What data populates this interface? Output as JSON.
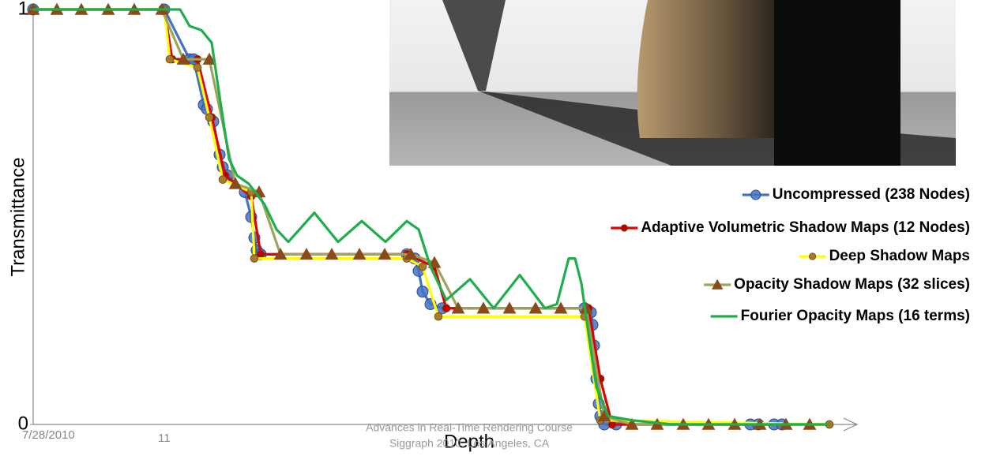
{
  "chart_data": {
    "type": "line",
    "y_label": "Transmittance",
    "x_label": "Depth",
    "xlim": [
      0,
      1043
    ],
    "ylim": [
      0,
      1
    ],
    "yticks": [
      0,
      1
    ],
    "legend": "right",
    "series": [
      {
        "name": "Uncompressed (238 Nodes)",
        "color": "#4472c4",
        "marker": "circle",
        "marker_color": "#4472c4",
        "x": [
          0,
          166,
          198,
          203,
          216,
          220,
          228,
          236,
          240,
          246,
          268,
          276,
          280,
          283,
          288,
          473,
          483,
          488,
          493,
          503,
          518,
          698,
          706,
          708,
          710,
          713,
          716,
          718,
          723,
          738,
          908,
          918,
          938,
          948
        ],
        "values": [
          1,
          1,
          0.88,
          0.88,
          0.77,
          0.76,
          0.73,
          0.65,
          0.62,
          0.6,
          0.56,
          0.5,
          0.45,
          0.42,
          0.41,
          0.41,
          0.4,
          0.37,
          0.32,
          0.29,
          0.28,
          0.28,
          0.27,
          0.24,
          0.19,
          0.11,
          0.05,
          0.02,
          0,
          0,
          0,
          0,
          0,
          0
        ]
      },
      {
        "name": "Adaptive Volumetric Shadow Maps (12 Nodes)",
        "color": "#e00000",
        "marker": "dot",
        "marker_color": "#c00000",
        "x": [
          0,
          166,
          176,
          208,
          226,
          243,
          276,
          288,
          473,
          508,
          523,
          703,
          718,
          733,
          1008
        ],
        "values": [
          1,
          1,
          0.88,
          0.88,
          0.74,
          0.6,
          0.55,
          0.41,
          0.41,
          0.38,
          0.28,
          0.28,
          0.11,
          0,
          0
        ]
      },
      {
        "name": "Deep Shadow Maps",
        "color": "#ffff00",
        "marker": "dot",
        "marker_color": "#a57a2a",
        "x": [
          0,
          166,
          173,
          208,
          223,
          240,
          276,
          280,
          473,
          493,
          513,
          698,
          718,
          1008
        ],
        "values": [
          1,
          1,
          0.88,
          0.86,
          0.74,
          0.59,
          0.56,
          0.4,
          0.4,
          0.38,
          0.26,
          0.26,
          0.01,
          0
        ]
      },
      {
        "name": "Opacity Shadow Maps (32 slices)",
        "color": "#9ba65c",
        "marker": "triangle",
        "marker_color": "#8a4a1c",
        "x": [
          0,
          30,
          61,
          95,
          128,
          163,
          190,
          223,
          256,
          286,
          313,
          346,
          378,
          413,
          445,
          478,
          508,
          538,
          570,
          603,
          636,
          668,
          700,
          723,
          758,
          790,
          823,
          855,
          888,
          920,
          953,
          983
        ],
        "values": [
          1,
          1,
          1,
          1,
          1,
          1,
          0.88,
          0.88,
          0.58,
          0.56,
          0.41,
          0.41,
          0.41,
          0.41,
          0.41,
          0.41,
          0.39,
          0.28,
          0.28,
          0.28,
          0.28,
          0.28,
          0.28,
          0.02,
          0,
          0,
          0,
          0,
          0,
          0,
          0,
          0
        ]
      },
      {
        "name": "Fourier Opacity Maps (16 terms)",
        "color": "#1fae4b",
        "marker": null,
        "marker_color": null,
        "x": [
          0,
          163,
          186,
          198,
          213,
          226,
          236,
          248,
          258,
          273,
          293,
          308,
          323,
          356,
          386,
          416,
          446,
          473,
          488,
          503,
          523,
          553,
          583,
          616,
          648,
          663,
          678,
          686,
          694,
          703,
          713,
          728,
          758,
          808,
          1008
        ],
        "values": [
          1,
          1,
          1,
          0.96,
          0.95,
          0.92,
          0.79,
          0.64,
          0.6,
          0.58,
          0.53,
          0.47,
          0.44,
          0.51,
          0.44,
          0.49,
          0.44,
          0.49,
          0.47,
          0.38,
          0.3,
          0.35,
          0.28,
          0.36,
          0.28,
          0.29,
          0.4,
          0.4,
          0.34,
          0.22,
          0.09,
          0.02,
          0.01,
          0,
          0
        ]
      }
    ],
    "footer": {
      "date": "7/28/2010",
      "page": "11",
      "course": "Advances in Real-Time Rendering Course",
      "venue": "Siggraph 2010, Los Angeles, CA"
    }
  }
}
